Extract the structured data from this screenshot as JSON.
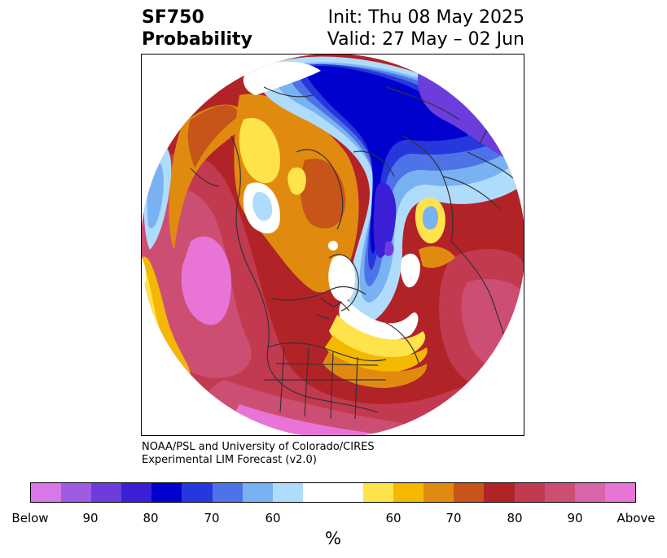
{
  "title": {
    "line1": "SF750",
    "line2": "Probability",
    "init": "Init: Thu 08 May 2025",
    "valid": "Valid: 27 May – 02 Jun"
  },
  "credit": {
    "line1": "NOAA/PSL and University of Colorado/CIRES",
    "line2": "Experimental LIM Forecast (v2.0)"
  },
  "colorbar": {
    "unit": "%",
    "colors": [
      "#d877e8",
      "#a05be4",
      "#6c3ddc",
      "#3a1fd6",
      "#0000cf",
      "#2637dc",
      "#4e73e8",
      "#78b2f2",
      "#b0dcfc",
      "#ffffff",
      "#ffffff",
      "#ffe34a",
      "#f5b800",
      "#e08b10",
      "#c75419",
      "#b22327",
      "#c23a50",
      "#cc4f73",
      "#d865a9",
      "#e874d8"
    ],
    "labels": [
      "Below",
      "90",
      "80",
      "70",
      "60",
      "60",
      "70",
      "80",
      "90",
      "Above"
    ]
  },
  "colors": {
    "below_deep": "#0000cf",
    "below_mid": "#4e73e8",
    "below_light": "#b0dcfc",
    "above_yellow": "#ffe34a",
    "above_orange": "#e08b10",
    "above_red": "#b22327",
    "above_pink": "#cc4f73",
    "above_magenta": "#e874d8",
    "coastline": "#333333"
  }
}
